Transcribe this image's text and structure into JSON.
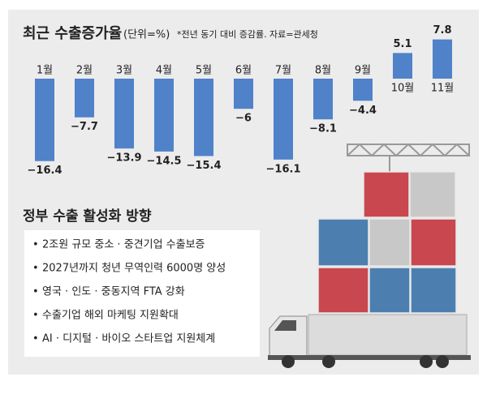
{
  "chart_data": {
    "type": "bar",
    "title": "최근 수출증가율",
    "unit": "(단위=%)",
    "note": "*전년 동기 대비 증감률. 자료=관세청",
    "categories": [
      "1월",
      "2월",
      "3월",
      "4월",
      "5월",
      "6월",
      "7월",
      "8월",
      "9월",
      "10월",
      "11월"
    ],
    "values": [
      -16.4,
      -7.7,
      -13.9,
      -14.5,
      -15.4,
      -6,
      -16.1,
      -8.1,
      -4.4,
      5.1,
      7.8
    ],
    "value_labels": [
      "−16.4",
      "−7.7",
      "−13.9",
      "−14.5",
      "−15.4",
      "−6",
      "−16.1",
      "−8.1",
      "−4.4",
      "5.1",
      "7.8"
    ],
    "color": "#4f82c9",
    "ylim": [
      -20,
      10
    ]
  },
  "policy": {
    "title": "정부 수출 활성화 방향",
    "items": [
      "2조원 규모 중소 · 중견기업 수출보증",
      "2027년까지 청년 무역인력 6000명 양성",
      "영국 · 인도 · 중동지역 FTA 강화",
      "수출기업 해외 마케팅 지원확대",
      "AI · 디지털 · 바이오 스타트업 지원체계"
    ]
  }
}
